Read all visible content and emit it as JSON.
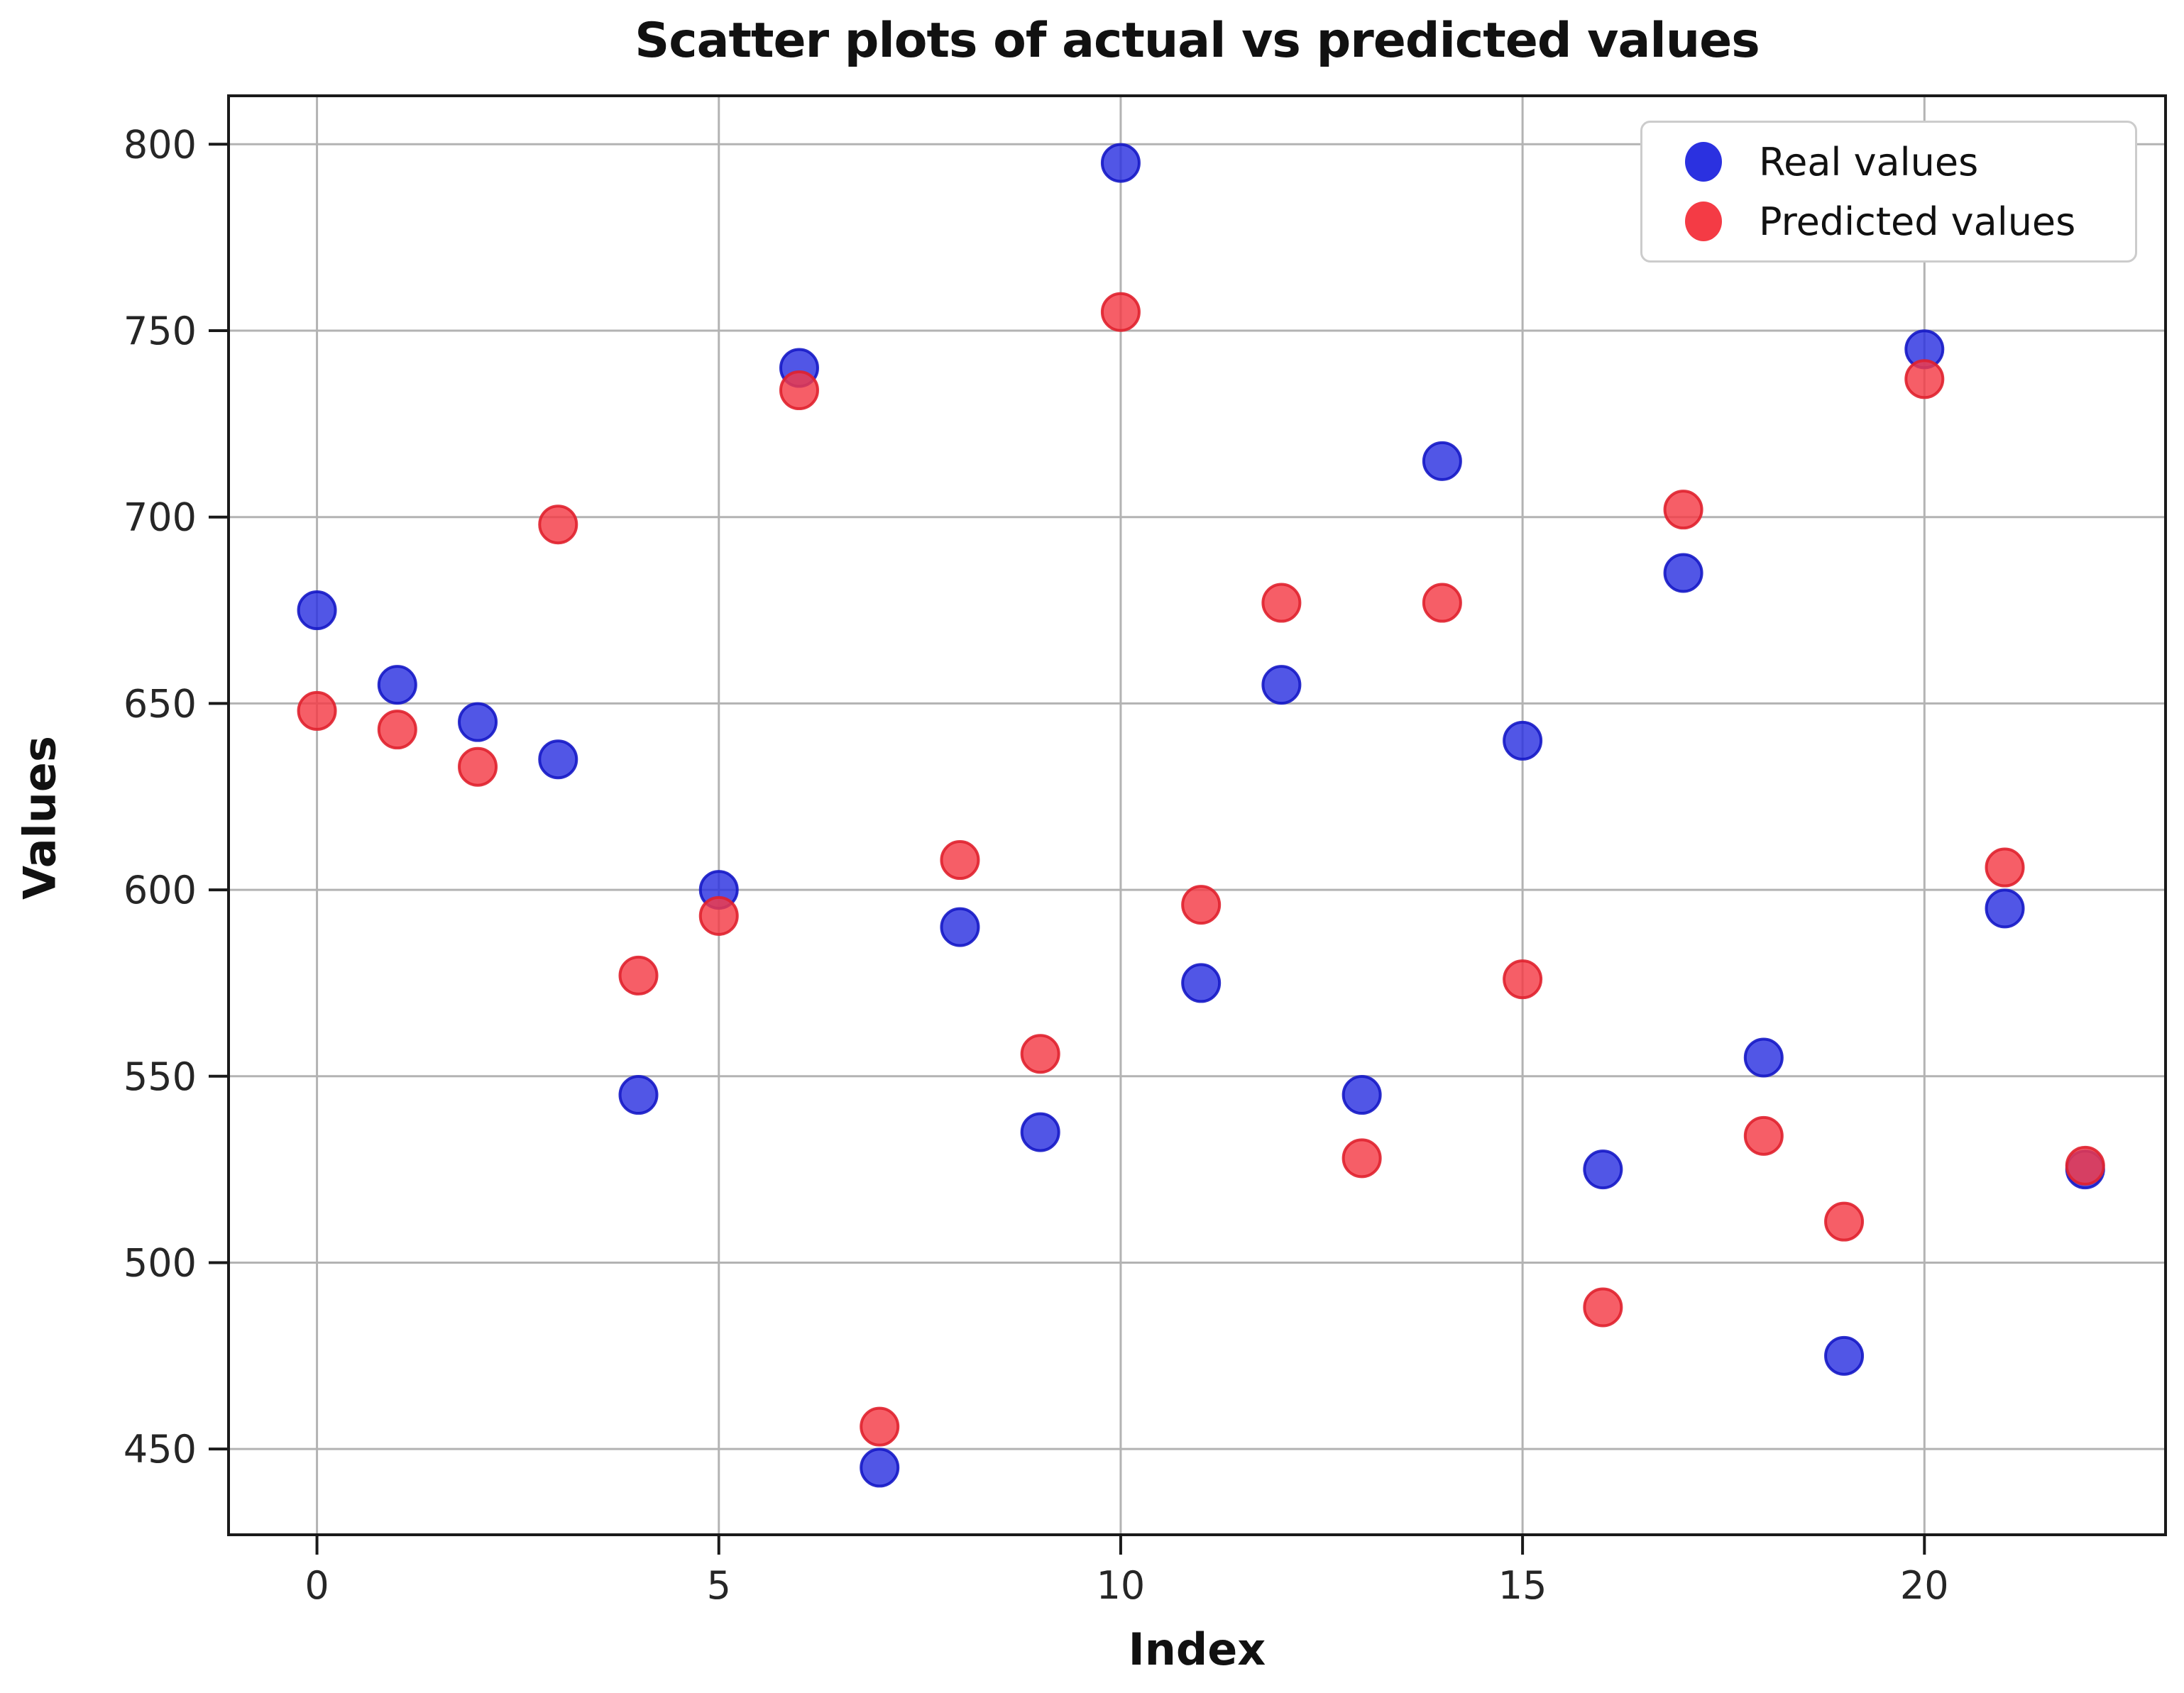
{
  "chart_data": {
    "type": "scatter",
    "title": "Scatter plots of actual vs predicted values",
    "xlabel": "Index",
    "ylabel": "Values",
    "x": [
      0,
      1,
      2,
      3,
      4,
      5,
      6,
      7,
      8,
      9,
      10,
      11,
      12,
      13,
      14,
      15,
      16,
      17,
      18,
      19,
      20,
      21,
      22
    ],
    "series": [
      {
        "name": "Real values",
        "color": "#2b31e0",
        "edge_color": "#1518c6",
        "values": [
          675,
          655,
          645,
          635,
          545,
          600,
          740,
          445,
          590,
          535,
          795,
          575,
          655,
          545,
          715,
          640,
          525,
          685,
          555,
          475,
          745,
          595,
          525
        ]
      },
      {
        "name": "Predicted values",
        "color": "#f43b45",
        "edge_color": "#e0212e",
        "values": [
          648,
          643,
          633,
          698,
          577,
          593,
          734,
          456,
          608,
          556,
          755,
          596,
          677,
          528,
          677,
          576,
          488,
          702,
          534,
          511,
          737,
          606,
          526
        ]
      }
    ],
    "xlim": [
      -1.1,
      23.0
    ],
    "ylim": [
      427,
      813
    ],
    "xticks": [
      0,
      5,
      10,
      15,
      20
    ],
    "yticks": [
      450,
      500,
      550,
      600,
      650,
      700,
      750,
      800
    ],
    "grid": true,
    "legend_position": "upper right",
    "marker_radius": 26,
    "grid_color": "#b3b3b3",
    "spine_color": "#1a1a1a",
    "tick_label_color": "#262626",
    "background": "#ffffff"
  }
}
